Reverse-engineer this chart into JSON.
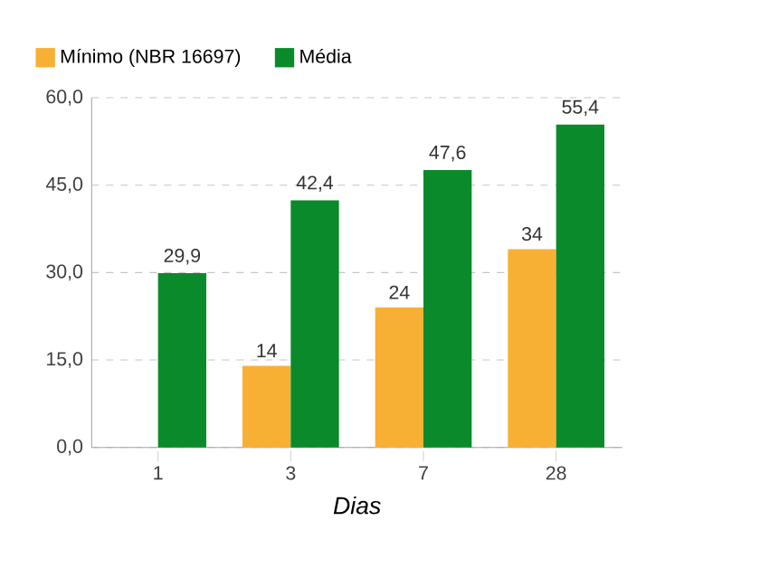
{
  "chart_data": {
    "type": "bar",
    "xlabel": "Dias",
    "categories": [
      "1",
      "3",
      "7",
      "28"
    ],
    "series": [
      {
        "name": "Mínimo (NBR 16697)",
        "color": "#f7b034",
        "values": [
          null,
          14,
          24,
          34
        ],
        "value_labels": [
          null,
          "14",
          "24",
          "34"
        ]
      },
      {
        "name": "Média",
        "color": "#0b8a2b",
        "values": [
          29.9,
          42.4,
          47.6,
          55.4
        ],
        "value_labels": [
          "29,9",
          "42,4",
          "47,6",
          "55,4"
        ]
      }
    ],
    "ylim": [
      0,
      60
    ],
    "yticks": [
      {
        "value": 0,
        "label": "0,0"
      },
      {
        "value": 15,
        "label": "15,0"
      },
      {
        "value": 30,
        "label": "30,0"
      },
      {
        "value": 45,
        "label": "45,0"
      },
      {
        "value": 60,
        "label": "60,0"
      }
    ],
    "grid": "y",
    "legend": "top left"
  }
}
